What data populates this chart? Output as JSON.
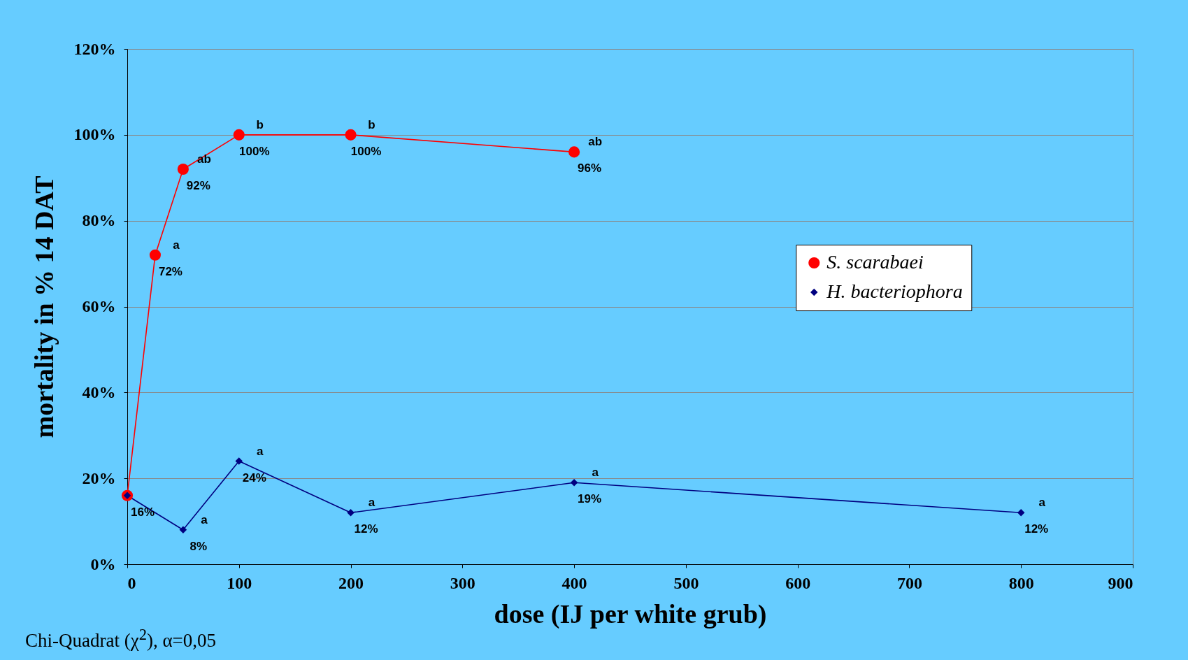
{
  "chart_data": {
    "type": "line",
    "xlabel": "dose (IJ per white grub)",
    "ylabel": "mortality in %  14 DAT",
    "xlim": [
      0,
      900
    ],
    "xticks": [
      0,
      100,
      200,
      300,
      400,
      500,
      600,
      700,
      800,
      900
    ],
    "ylim": [
      0,
      120
    ],
    "yticks": [
      {
        "value": 0,
        "label": "0%"
      },
      {
        "value": 20,
        "label": "20%"
      },
      {
        "value": 40,
        "label": "40%"
      },
      {
        "value": 60,
        "label": "60%"
      },
      {
        "value": 80,
        "label": "80%"
      },
      {
        "value": 100,
        "label": "100%"
      },
      {
        "value": 120,
        "label": "120%"
      }
    ],
    "grid": "y",
    "legend": "right",
    "series": [
      {
        "name": "S. scarabaei",
        "color": "#ff0000",
        "marker": "circle",
        "x": [
          0,
          25,
          50,
          100,
          200,
          400
        ],
        "values": [
          16,
          72,
          92,
          100,
          100,
          96
        ],
        "value_labels": [
          null,
          "72%",
          "92%",
          "100%",
          "100%",
          "96%"
        ]
      },
      {
        "name": "H. bacteriophora",
        "color": "#000080",
        "marker": "diamond",
        "x": [
          0,
          50,
          100,
          200,
          400,
          800
        ],
        "values": [
          16,
          8,
          24,
          12,
          19,
          12
        ],
        "value_labels": [
          "16%",
          "8%",
          "24%",
          "12%",
          "19%",
          "12%"
        ]
      }
    ],
    "annotations": [
      {
        "text": "a",
        "x": 25,
        "y": 72
      },
      {
        "text": "ab",
        "x": 50,
        "y": 92
      },
      {
        "text": "b",
        "x": 100,
        "y": 100
      },
      {
        "text": "b",
        "x": 200,
        "y": 100
      },
      {
        "text": "ab",
        "x": 400,
        "y": 96
      },
      {
        "text": "a",
        "x": 50,
        "y": 8
      },
      {
        "text": "a",
        "x": 100,
        "y": 24
      },
      {
        "text": "a",
        "x": 200,
        "y": 12
      },
      {
        "text": "a",
        "x": 400,
        "y": 19
      },
      {
        "text": "a",
        "x": 800,
        "y": 12
      },
      "Chi-Quadrat (χ$^{2}$), α=0,05"
    ]
  }
}
